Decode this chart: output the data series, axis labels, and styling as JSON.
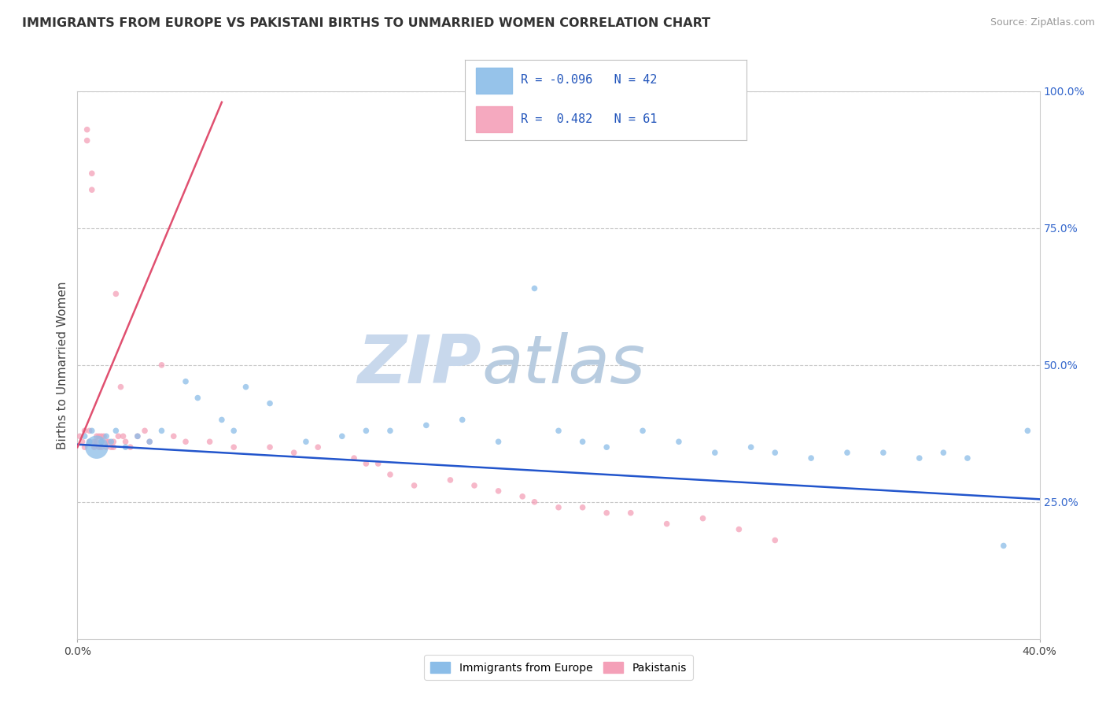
{
  "title": "IMMIGRANTS FROM EUROPE VS PAKISTANI BIRTHS TO UNMARRIED WOMEN CORRELATION CHART",
  "source": "Source: ZipAtlas.com",
  "ylabel": "Births to Unmarried Women",
  "legend1_label": "Immigrants from Europe",
  "legend2_label": "Pakistanis",
  "R_blue": -0.096,
  "N_blue": 42,
  "R_pink": 0.482,
  "N_pink": 61,
  "blue_color": "#8bbde8",
  "pink_color": "#f4a0b8",
  "trend_blue_color": "#2255cc",
  "trend_pink_color": "#e05070",
  "watermark_zip": "ZIP",
  "watermark_atlas": "atlas",
  "watermark_color": "#c8d8ec",
  "xlim": [
    0.0,
    40.0
  ],
  "ylim": [
    0.0,
    100.0
  ],
  "yticks": [
    25,
    50,
    75,
    100
  ],
  "ytick_labels": [
    "25.0%",
    "50.0%",
    "75.0%",
    "100.0%"
  ],
  "xtick_labels": [
    "0.0%",
    "40.0%"
  ],
  "blue_scatter_x": [
    0.3,
    0.5,
    0.6,
    0.8,
    1.0,
    1.2,
    1.4,
    1.6,
    2.0,
    2.5,
    3.0,
    3.5,
    4.5,
    5.0,
    6.0,
    6.5,
    7.0,
    8.0,
    9.5,
    11.0,
    12.0,
    13.0,
    14.5,
    16.0,
    17.5,
    19.0,
    20.0,
    21.0,
    22.0,
    23.5,
    25.0,
    26.5,
    28.0,
    29.0,
    30.5,
    32.0,
    33.5,
    35.0,
    36.0,
    37.0,
    38.5,
    39.5
  ],
  "blue_scatter_y": [
    37,
    36,
    38,
    35,
    36,
    37,
    36,
    38,
    35,
    37,
    36,
    38,
    47,
    44,
    40,
    38,
    46,
    43,
    36,
    37,
    38,
    38,
    39,
    40,
    36,
    64,
    38,
    36,
    35,
    38,
    36,
    34,
    35,
    34,
    33,
    34,
    34,
    33,
    34,
    33,
    17,
    38
  ],
  "blue_scatter_size": [
    30,
    30,
    30,
    450,
    30,
    30,
    30,
    30,
    30,
    30,
    30,
    30,
    30,
    30,
    30,
    30,
    30,
    30,
    30,
    30,
    30,
    30,
    30,
    30,
    30,
    30,
    30,
    30,
    30,
    30,
    30,
    30,
    30,
    30,
    30,
    30,
    30,
    30,
    30,
    30,
    30,
    30
  ],
  "pink_scatter_x": [
    0.1,
    0.2,
    0.3,
    0.3,
    0.4,
    0.4,
    0.5,
    0.5,
    0.6,
    0.6,
    0.7,
    0.7,
    0.8,
    0.8,
    0.9,
    0.9,
    1.0,
    1.0,
    1.0,
    1.1,
    1.2,
    1.2,
    1.3,
    1.4,
    1.5,
    1.5,
    1.6,
    1.7,
    1.8,
    1.9,
    2.0,
    2.2,
    2.5,
    2.8,
    3.0,
    3.5,
    4.0,
    4.5,
    5.5,
    6.5,
    8.0,
    9.0,
    10.0,
    11.5,
    12.0,
    12.5,
    13.0,
    14.0,
    15.5,
    16.5,
    17.5,
    18.5,
    19.0,
    20.0,
    21.0,
    22.0,
    23.0,
    24.5,
    26.0,
    27.5,
    29.0
  ],
  "pink_scatter_y": [
    37,
    36,
    38,
    35,
    93,
    91,
    38,
    36,
    85,
    82,
    36,
    35,
    37,
    36,
    37,
    35,
    37,
    36,
    35,
    37,
    36,
    35,
    36,
    35,
    36,
    35,
    63,
    37,
    46,
    37,
    36,
    35,
    37,
    38,
    36,
    50,
    37,
    36,
    36,
    35,
    35,
    34,
    35,
    33,
    32,
    32,
    30,
    28,
    29,
    28,
    27,
    26,
    25,
    24,
    24,
    23,
    23,
    21,
    22,
    20,
    18
  ],
  "pink_scatter_size": [
    30,
    30,
    30,
    30,
    30,
    30,
    30,
    30,
    30,
    30,
    30,
    30,
    30,
    30,
    30,
    30,
    30,
    30,
    30,
    30,
    30,
    30,
    30,
    30,
    30,
    30,
    30,
    30,
    30,
    30,
    30,
    30,
    30,
    30,
    30,
    30,
    30,
    30,
    30,
    30,
    30,
    30,
    30,
    30,
    30,
    30,
    30,
    30,
    30,
    30,
    30,
    30,
    30,
    30,
    30,
    30,
    30,
    30,
    30,
    30,
    30
  ],
  "trend_blue_x0": 0.0,
  "trend_blue_y0": 35.5,
  "trend_blue_x1": 40.0,
  "trend_blue_y1": 25.5,
  "trend_pink_x0": 0.0,
  "trend_pink_y0": 35.0,
  "trend_pink_x1": 6.0,
  "trend_pink_y1": 98.0
}
